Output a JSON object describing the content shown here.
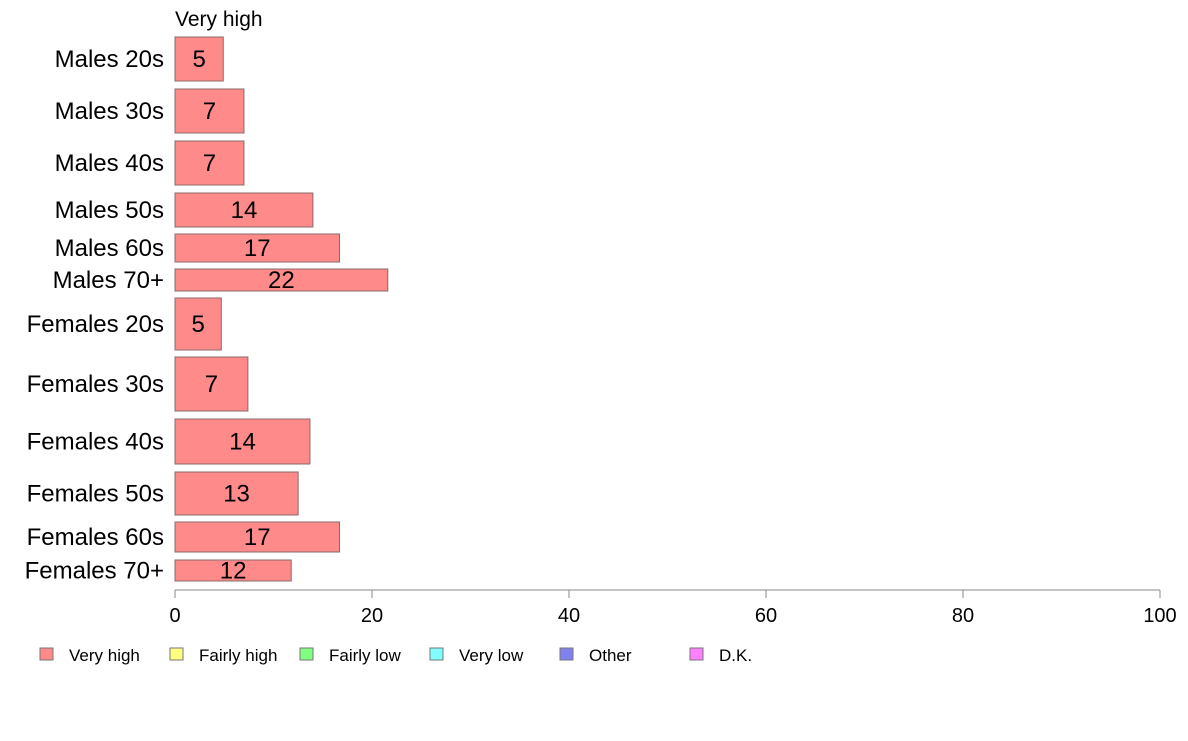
{
  "chart_data": {
    "type": "bar",
    "orientation": "horizontal",
    "panel_title": "Very high",
    "categories": [
      "Males 20s",
      "Males 30s",
      "Males 40s",
      "Males 50s",
      "Males 60s",
      "Males 70+",
      "Females 20s",
      "Females 30s",
      "Females 40s",
      "Females 50s",
      "Females 60s",
      "Females 70+"
    ],
    "series": [
      {
        "name": "Very high",
        "values": [
          4.9,
          7.0,
          7.0,
          14.0,
          16.7,
          21.6,
          4.7,
          7.4,
          13.7,
          12.5,
          16.7,
          11.8
        ],
        "labels": [
          "5",
          "7",
          "7",
          "14",
          "17",
          "22",
          "5",
          "7",
          "14",
          "13",
          "17",
          "12"
        ],
        "color": "#ff8a8a"
      }
    ],
    "xlim": [
      0,
      100
    ],
    "xticks": [
      "0",
      "20",
      "40",
      "60",
      "80",
      "100"
    ],
    "legend": {
      "placement": "bottom",
      "entries": [
        {
          "label": "Very high",
          "color": "#ff8a8a"
        },
        {
          "label": "Fairly high",
          "color": "#ffff80"
        },
        {
          "label": "Fairly low",
          "color": "#80ff80"
        },
        {
          "label": "Very low",
          "color": "#80ffff"
        },
        {
          "label": "Other",
          "color": "#8080f0"
        },
        {
          "label": "D.K.",
          "color": "#ff80ff"
        }
      ]
    },
    "grid": false
  }
}
